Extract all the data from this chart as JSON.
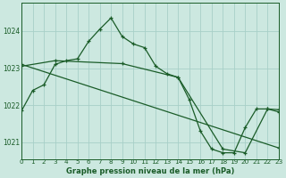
{
  "title": "Graphe pression niveau de la mer (hPa)",
  "bg_color": "#cce8e0",
  "grid_color": "#a8cfc8",
  "line_color": "#1a5c28",
  "marker": "+",
  "xlim": [
    0,
    23
  ],
  "ylim": [
    1020.55,
    1024.75
  ],
  "yticks": [
    1021,
    1022,
    1023,
    1024
  ],
  "xticks": [
    0,
    1,
    2,
    3,
    4,
    5,
    6,
    7,
    8,
    9,
    10,
    11,
    12,
    13,
    14,
    15,
    16,
    17,
    18,
    19,
    20,
    21,
    22,
    23
  ],
  "series1_x": [
    0,
    1,
    2,
    3,
    4,
    5,
    6,
    7,
    8,
    9,
    10,
    11,
    12,
    13,
    14,
    15,
    16,
    17,
    18,
    19,
    20,
    21,
    22,
    23
  ],
  "series1_y": [
    1021.85,
    1022.4,
    1022.55,
    1023.1,
    1023.2,
    1023.25,
    1023.72,
    1024.05,
    1024.35,
    1023.85,
    1023.65,
    1023.55,
    1023.05,
    1022.85,
    1022.75,
    1022.15,
    1021.3,
    1020.82,
    1020.72,
    1020.72,
    1021.4,
    1021.9,
    1021.9,
    1021.88
  ],
  "series2_x": [
    0,
    3,
    9,
    14,
    18,
    20,
    22,
    23
  ],
  "series2_y": [
    1023.05,
    1023.2,
    1023.12,
    1022.75,
    1020.82,
    1020.72,
    1021.9,
    1021.82
  ],
  "series3_x": [
    0,
    23
  ],
  "series3_y": [
    1023.1,
    1020.85
  ]
}
